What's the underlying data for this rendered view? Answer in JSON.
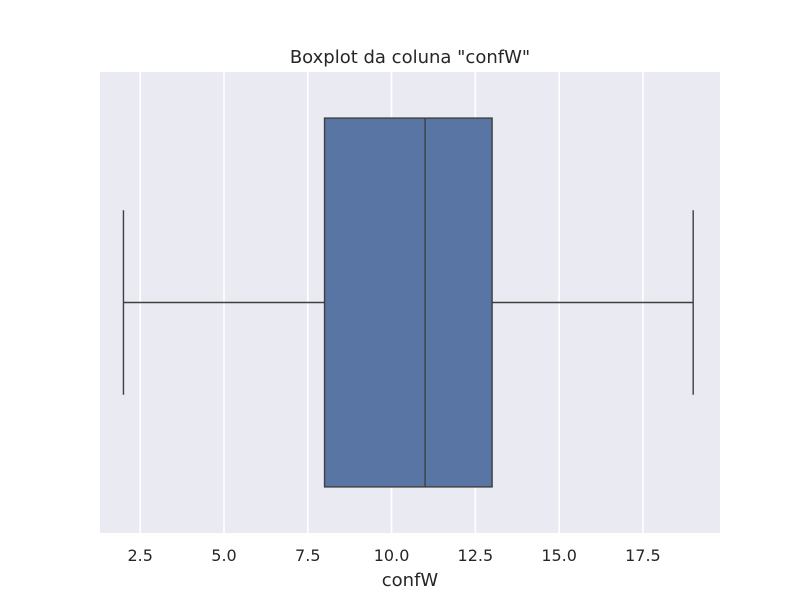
{
  "chart_data": {
    "type": "boxplot",
    "title": "Boxplot da coluna \"confW\"",
    "xlabel": "confW",
    "ylabel": "",
    "xlim": [
      1.3,
      19.8
    ],
    "ticks": [
      2.5,
      5.0,
      7.5,
      10.0,
      12.5,
      15.0,
      17.5
    ],
    "tick_labels": [
      "2.5",
      "5.0",
      "7.5",
      "10.0",
      "12.5",
      "15.0",
      "17.5"
    ],
    "grid": true,
    "orientation": "horizontal",
    "box": {
      "whisker_low": 2,
      "q1": 8,
      "median": 11,
      "q3": 13,
      "whisker_high": 19
    },
    "colors": {
      "plot_background": "#EAEAF2",
      "box_fill": "#5975A4",
      "line": "#3F3F3F",
      "grid": "#FFFFFF"
    }
  }
}
